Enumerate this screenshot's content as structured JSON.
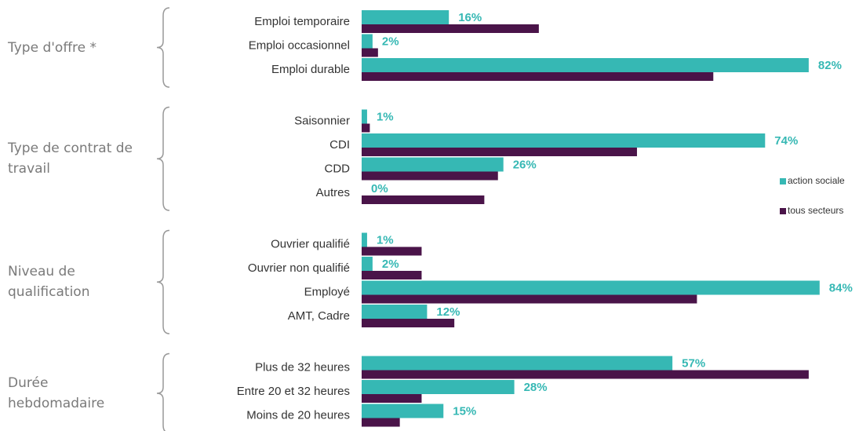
{
  "chart_data": {
    "type": "bar",
    "orientation": "horizontal",
    "groups": [
      {
        "label": "Type d'offre *",
        "categories": [
          "Emploi temporaire",
          "Emploi occasionnel",
          "Emploi durable"
        ]
      },
      {
        "label": "Type de contrat de travail",
        "categories": [
          "Saisonnier",
          "CDI",
          "CDD",
          "Autres"
        ]
      },
      {
        "label": "Niveau de qualification",
        "categories": [
          "Ouvrier qualifié",
          "Ouvrier non qualifié",
          "Employé",
          "AMT, Cadre"
        ]
      },
      {
        "label": "Durée hebdomadaire",
        "categories": [
          "Plus de 32 heures",
          "Entre 20 et 32 heures",
          "Moins de 20 heures"
        ]
      }
    ],
    "series": [
      {
        "name": "action sociale",
        "color": "#36b8b4",
        "values": [
          16,
          2,
          82,
          1,
          74,
          26,
          0,
          1,
          2,
          84,
          12,
          57,
          28,
          15
        ],
        "value_labels": [
          "16%",
          "2%",
          "82%",
          "1%",
          "74%",
          "26%",
          "0%",
          "1%",
          "2%",
          "84%",
          "12%",
          "57%",
          "28%",
          "15%"
        ]
      },
      {
        "name": "tous secteurs",
        "color": "#4a1449",
        "values": [
          32.5,
          3,
          64.5,
          1.5,
          50.5,
          25,
          22.5,
          11,
          11,
          61.5,
          17,
          82,
          11,
          7
        ]
      }
    ],
    "xlim": [
      0,
      100
    ]
  }
}
